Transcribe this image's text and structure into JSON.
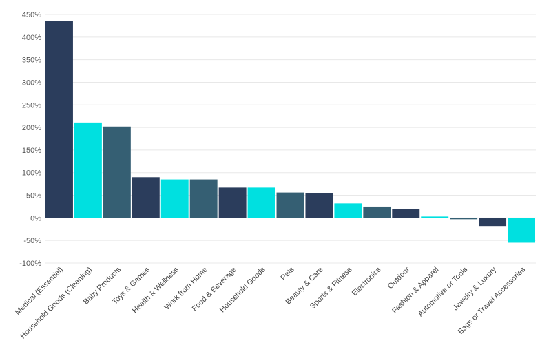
{
  "chart_data": {
    "type": "bar",
    "title": "",
    "xlabel": "",
    "ylabel": "",
    "ylim": [
      -100,
      450
    ],
    "yticks": [
      450,
      400,
      350,
      300,
      250,
      200,
      150,
      100,
      50,
      0,
      -50,
      -100
    ],
    "ytick_labels": [
      "450%",
      "400%",
      "350%",
      "300%",
      "250%",
      "200%",
      "150%",
      "100%",
      "50%",
      "0%",
      "-50%",
      "-100%"
    ],
    "grid": true,
    "categories": [
      "Medical (Essential)",
      "Household Goods (Cleaning)",
      "Baby Products",
      "Toys & Games",
      "Health & Wellness",
      "Work from Home",
      "Food & Beverage",
      "Household Goods",
      "Pets",
      "Beauty & Care",
      "Sports & Fitness",
      "Electronics",
      "Outdoor",
      "Fashion & Apparel",
      "Automotive or Tools",
      "Jewelry & Luxury",
      "Bags or Travel Accessories"
    ],
    "values": [
      435,
      211,
      202,
      90,
      85,
      85,
      67,
      67,
      56,
      54,
      32,
      25,
      19,
      3,
      -3,
      -18,
      -55
    ],
    "bar_colors": [
      "#2b3d5c",
      "#00e0e0",
      "#355f73",
      "#2b3d5c",
      "#00e0e0",
      "#355f73",
      "#2b3d5c",
      "#00e0e0",
      "#355f73",
      "#2b3d5c",
      "#00e0e0",
      "#355f73",
      "#2b3d5c",
      "#00e0e0",
      "#355f73",
      "#2b3d5c",
      "#00e0e0"
    ]
  }
}
